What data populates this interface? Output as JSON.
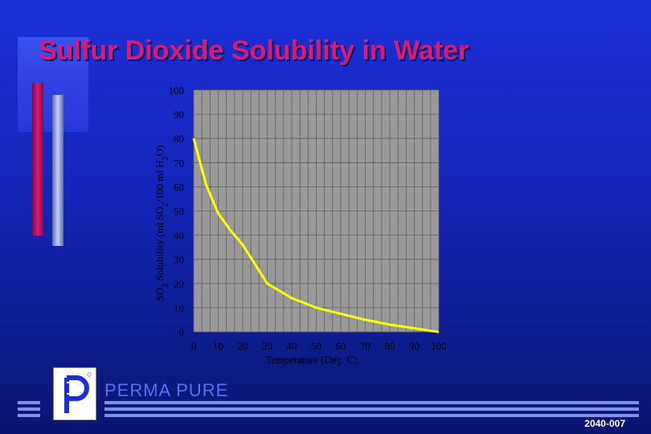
{
  "slide": {
    "title": "Sulfur Dioxide Solubility in Water",
    "brand": "PERMA PURE",
    "slide_code": "2040-007",
    "colors": {
      "title": "#d81b78",
      "curve": "#ffff00",
      "plot_bg": "#999999"
    }
  },
  "chart_data": {
    "type": "line",
    "xlabel": "Temperature (Deg. C)",
    "ylabel_parts": [
      "SO",
      "2",
      " Solubility (ml SO",
      "2",
      "/100 ml H",
      "2",
      "O)"
    ],
    "xlim": [
      0,
      100
    ],
    "ylim": [
      0,
      100
    ],
    "x_ticks": [
      "0",
      "10",
      "20",
      "30",
      "40",
      "50",
      "60",
      "70",
      "80",
      "90",
      "100"
    ],
    "y_ticks": [
      "0",
      "10",
      "20",
      "30",
      "40",
      "50",
      "60",
      "70",
      "80",
      "90",
      "100"
    ],
    "grid": true,
    "series": [
      {
        "x": [
          0,
          5,
          10,
          15,
          20,
          30,
          40,
          50,
          60,
          70,
          80,
          90,
          100
        ],
        "y": [
          80,
          61,
          49,
          42,
          36,
          20,
          14,
          10,
          7.5,
          5,
          3,
          1.5,
          0
        ]
      }
    ]
  }
}
